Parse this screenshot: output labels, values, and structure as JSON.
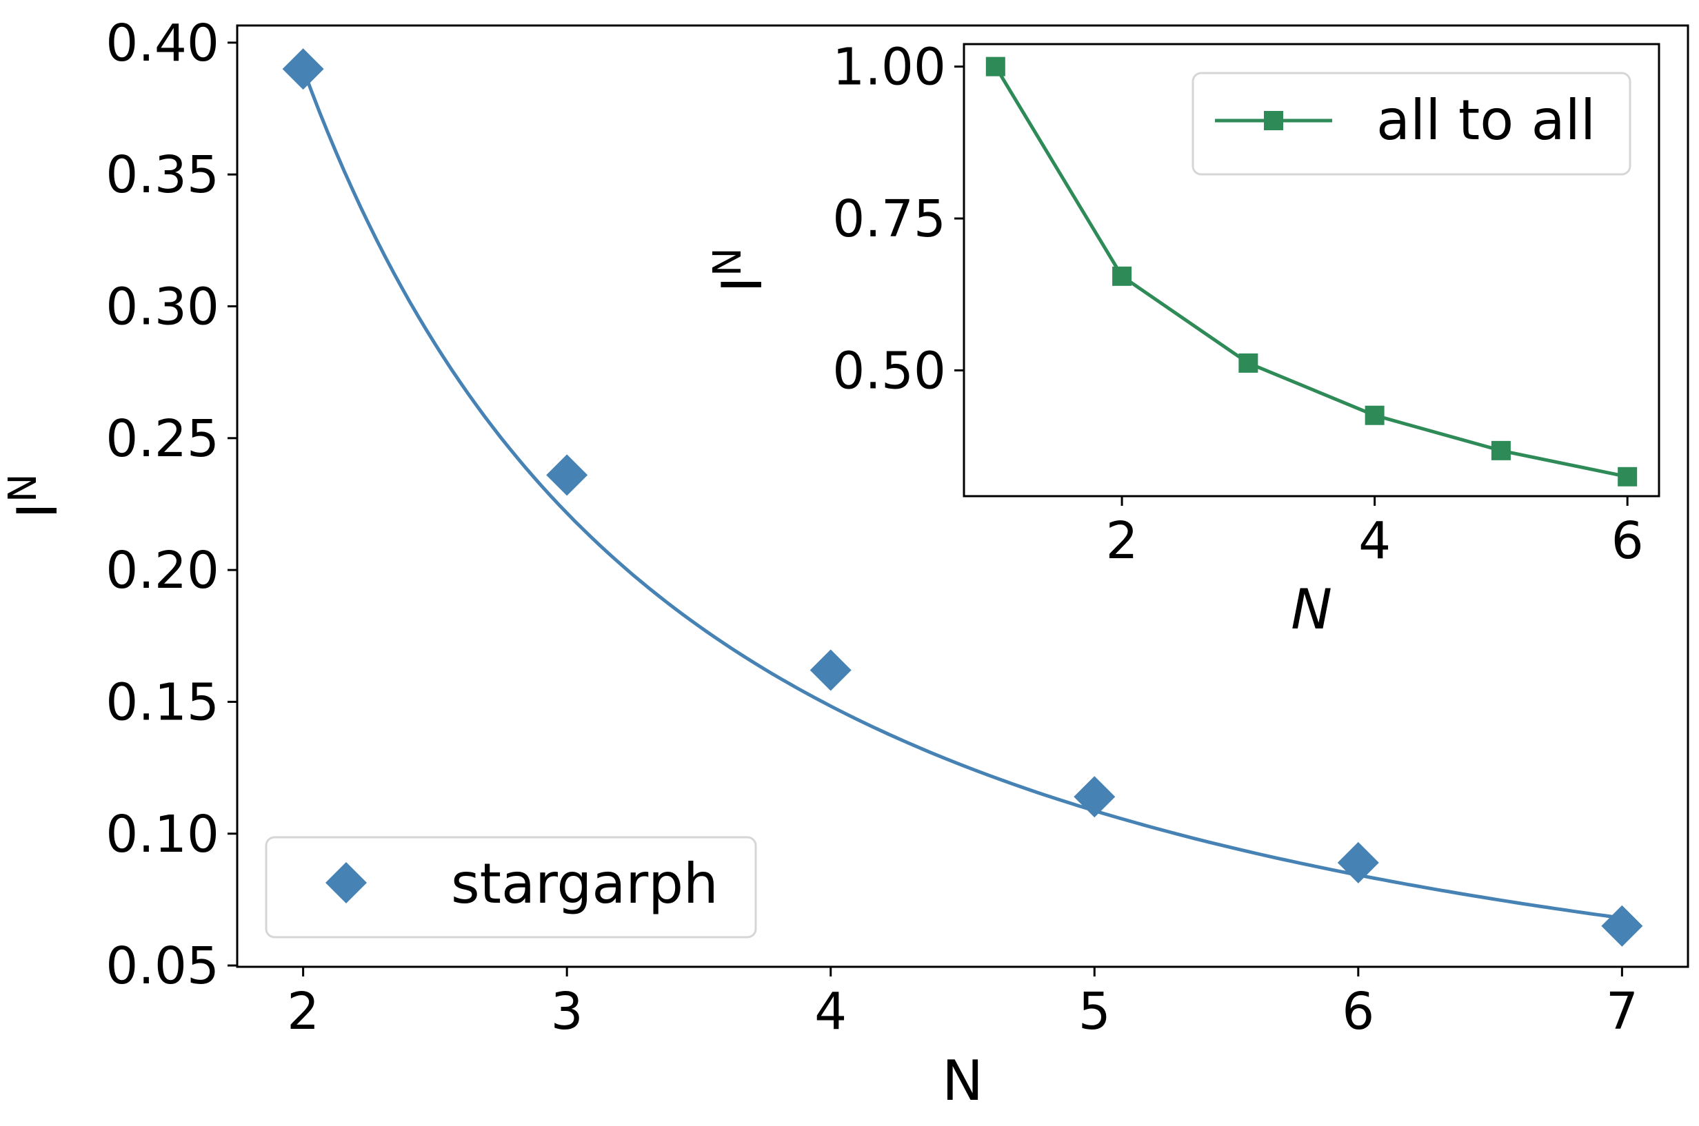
{
  "chart_data": [
    {
      "type": "line",
      "xlabel": "N",
      "ylabel": "I",
      "ylabel_superscript": "N",
      "xlim": [
        1.75,
        7.25
      ],
      "ylim": [
        0.0495,
        0.4065
      ],
      "x_ticks": [
        "2",
        "3",
        "4",
        "5",
        "6",
        "7"
      ],
      "y_ticks": [
        "0.05",
        "0.10",
        "0.15",
        "0.20",
        "0.25",
        "0.30",
        "0.35",
        "0.40"
      ],
      "grid": false,
      "legend_position": "lower-left",
      "series": [
        {
          "name": "stargarph",
          "marker": "diamond",
          "color": "#4682b4",
          "x": [
            2,
            3,
            4,
            5,
            6,
            7
          ],
          "y": [
            0.39,
            0.236,
            0.162,
            0.114,
            0.089,
            0.065
          ]
        }
      ],
      "fit_curve": {
        "color": "#4682b4",
        "y_at_7": 0.068
      }
    },
    {
      "type": "line",
      "role": "inset",
      "xlabel": "N",
      "ylabel": "I",
      "ylabel_superscript": "N",
      "xlim": [
        0.75,
        6.25
      ],
      "ylim": [
        0.293,
        1.037
      ],
      "x_ticks": [
        "2",
        "4",
        "6"
      ],
      "y_ticks": [
        "0.50",
        "0.75",
        "1.00"
      ],
      "grid": false,
      "legend_position": "upper-right",
      "series": [
        {
          "name": "all to all",
          "marker": "square",
          "color": "#2e8b57",
          "x": [
            1,
            2,
            3,
            4,
            5,
            6
          ],
          "y": [
            1.0,
            0.655,
            0.512,
            0.426,
            0.368,
            0.325
          ]
        }
      ]
    }
  ]
}
